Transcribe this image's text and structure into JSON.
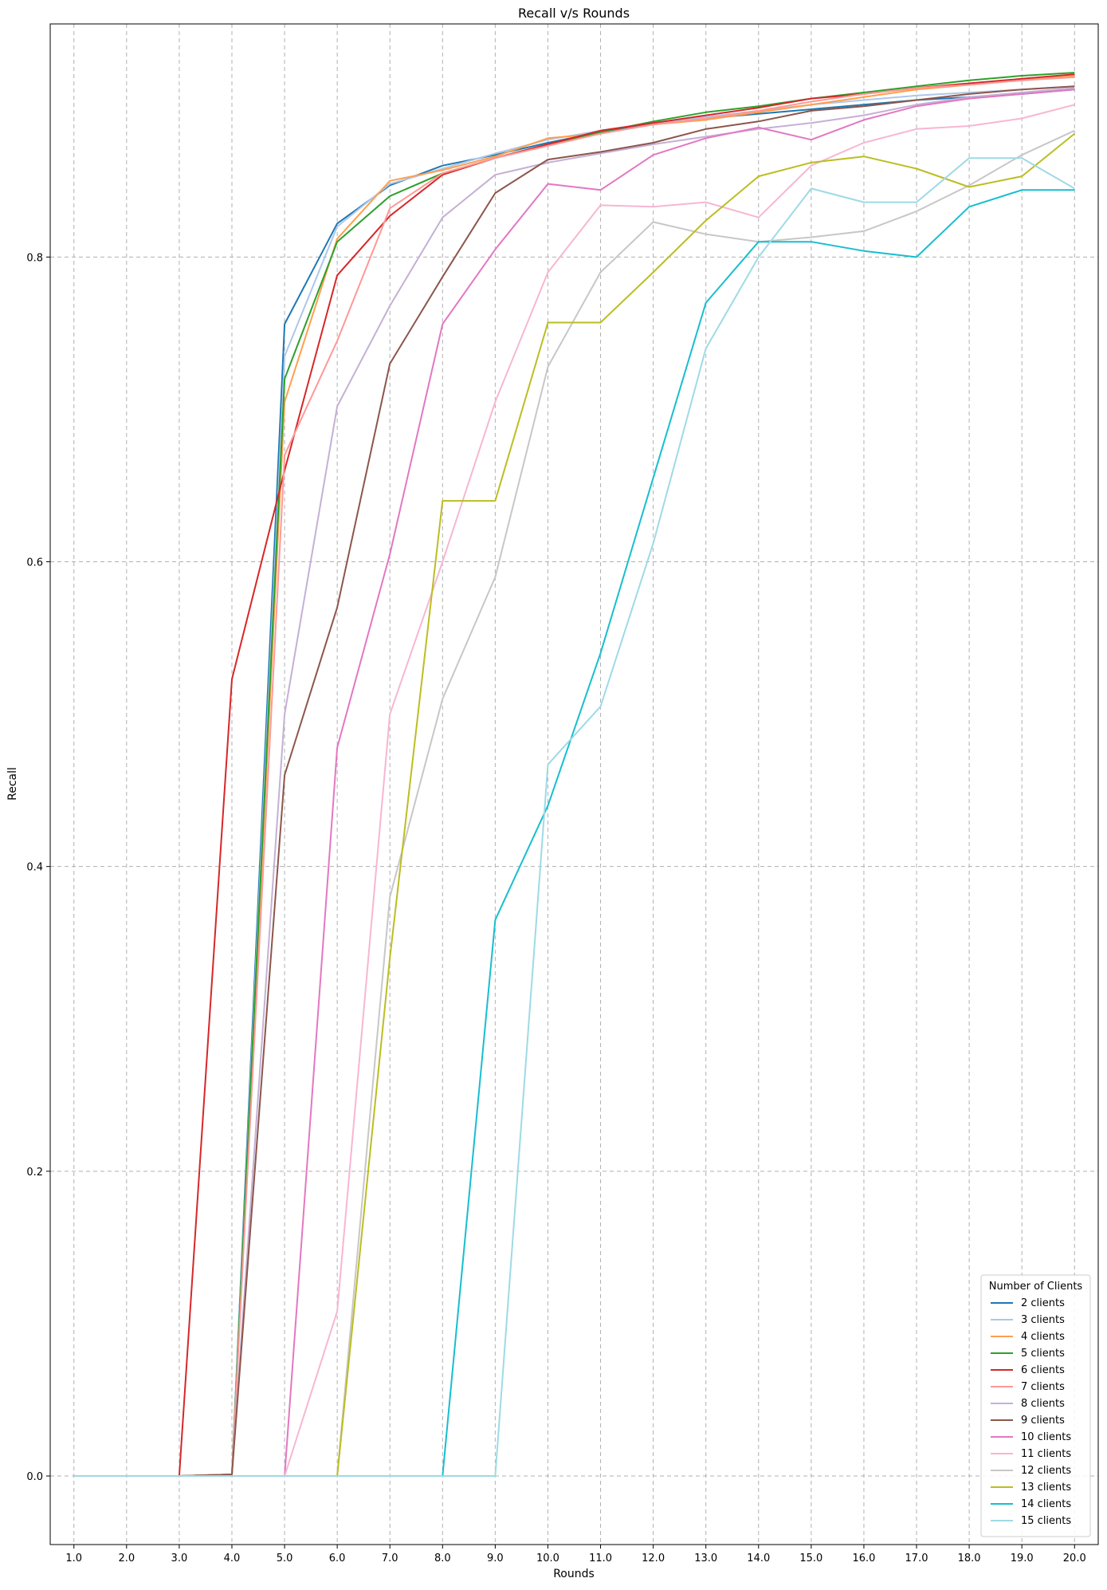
{
  "chart_data": {
    "type": "line",
    "title": "Recall v/s Rounds",
    "xlabel": "Rounds",
    "ylabel": "Recall",
    "x": [
      1,
      2,
      3,
      4,
      5,
      6,
      7,
      8,
      9,
      10,
      11,
      12,
      13,
      14,
      15,
      16,
      17,
      18,
      19,
      20
    ],
    "x_tick_labels": [
      "1.0",
      "2.0",
      "3.0",
      "4.0",
      "5.0",
      "6.0",
      "7.0",
      "8.0",
      "9.0",
      "10.0",
      "11.0",
      "12.0",
      "13.0",
      "14.0",
      "15.0",
      "16.0",
      "17.0",
      "18.0",
      "19.0",
      "20.0"
    ],
    "y_ticks": [
      0.0,
      0.2,
      0.4,
      0.6,
      0.8
    ],
    "y_tick_labels": [
      "0.0",
      "0.2",
      "0.4",
      "0.6",
      "0.8"
    ],
    "xlim": [
      0.55,
      20.45
    ],
    "ylim": [
      -0.045,
      0.953
    ],
    "grid": true,
    "legend": {
      "title": "Number of Clients",
      "placement": "lower-right"
    },
    "series": [
      {
        "name": "2 clients",
        "color": "#1f77b4",
        "values": [
          0,
          0,
          0,
          0.001,
          0.756,
          0.822,
          0.847,
          0.86,
          0.867,
          0.875,
          0.882,
          0.887,
          0.891,
          0.894,
          0.897,
          0.9,
          0.903,
          0.905,
          0.907,
          0.91
        ]
      },
      {
        "name": "3 clients",
        "color": "#aec7e8",
        "values": [
          0,
          0,
          0,
          0.001,
          0.735,
          0.82,
          0.848,
          0.858,
          0.868,
          0.877,
          0.883,
          0.888,
          0.892,
          0.896,
          0.9,
          0.903,
          0.906,
          0.908,
          0.91,
          0.912
        ]
      },
      {
        "name": "4 clients",
        "color": "#ff9f4e",
        "values": [
          0,
          0,
          0,
          0.001,
          0.705,
          0.812,
          0.85,
          0.857,
          0.866,
          0.878,
          0.881,
          0.887,
          0.89,
          0.895,
          0.9,
          0.905,
          0.91,
          0.913,
          0.916,
          0.919
        ]
      },
      {
        "name": "5 clients",
        "color": "#2ca02c",
        "values": [
          0,
          0,
          0,
          0.001,
          0.72,
          0.81,
          0.84,
          0.855,
          0.865,
          0.874,
          0.882,
          0.889,
          0.895,
          0.899,
          0.904,
          0.908,
          0.912,
          0.916,
          0.919,
          0.921
        ]
      },
      {
        "name": "6 clients",
        "color": "#d62728",
        "values": [
          0,
          0,
          0,
          0.523,
          0.66,
          0.788,
          0.827,
          0.854,
          0.865,
          0.874,
          0.883,
          0.888,
          0.893,
          0.898,
          0.904,
          0.907,
          0.911,
          0.914,
          0.917,
          0.92
        ]
      },
      {
        "name": "7 clients",
        "color": "#ff9896",
        "values": [
          0,
          0,
          0,
          0.001,
          0.67,
          0.745,
          0.832,
          0.855,
          0.865,
          0.873,
          0.881,
          0.887,
          0.891,
          0.896,
          0.902,
          0.907,
          0.911,
          0.913,
          0.916,
          0.918
        ]
      },
      {
        "name": "8 clients",
        "color": "#c5b0d5",
        "values": [
          0,
          0,
          0,
          0.001,
          0.5,
          0.702,
          0.768,
          0.826,
          0.854,
          0.862,
          0.868,
          0.874,
          0.879,
          0.884,
          0.888,
          0.893,
          0.9,
          0.905,
          0.908,
          0.911
        ]
      },
      {
        "name": "9 clients",
        "color": "#8c564b",
        "values": [
          0,
          0,
          0,
          0.001,
          0.46,
          0.57,
          0.73,
          0.787,
          0.842,
          0.864,
          0.869,
          0.875,
          0.884,
          0.889,
          0.896,
          0.899,
          0.903,
          0.907,
          0.91,
          0.912
        ]
      },
      {
        "name": "10 clients",
        "color": "#e377c2",
        "values": [
          0,
          0,
          0,
          0,
          0,
          0.478,
          0.605,
          0.756,
          0.805,
          0.848,
          0.844,
          0.867,
          0.878,
          0.885,
          0.877,
          0.89,
          0.899,
          0.904,
          0.907,
          0.91
        ]
      },
      {
        "name": "11 clients",
        "color": "#f7b6d2",
        "values": [
          0,
          0,
          0,
          0,
          0,
          0.108,
          0.5,
          0.6,
          0.705,
          0.79,
          0.834,
          0.833,
          0.836,
          0.826,
          0.86,
          0.875,
          0.884,
          0.886,
          0.891,
          0.9
        ]
      },
      {
        "name": "12 clients",
        "color": "#c7c7c7",
        "values": [
          0,
          0,
          0,
          0,
          0,
          0,
          0.38,
          0.51,
          0.59,
          0.728,
          0.79,
          0.823,
          0.815,
          0.81,
          0.813,
          0.817,
          0.83,
          0.847,
          0.867,
          0.883
        ]
      },
      {
        "name": "13 clients",
        "color": "#bcbd22",
        "values": [
          0,
          0,
          0,
          0,
          0,
          0,
          0.34,
          0.64,
          0.64,
          0.757,
          0.757,
          0.79,
          0.824,
          0.853,
          0.862,
          0.866,
          0.858,
          0.846,
          0.853,
          0.881
        ]
      },
      {
        "name": "14 clients",
        "color": "#17becf",
        "values": [
          0,
          0,
          0,
          0,
          0,
          0,
          0,
          0,
          0.365,
          0.44,
          0.54,
          0.655,
          0.77,
          0.81,
          0.81,
          0.804,
          0.8,
          0.833,
          0.844,
          0.844
        ]
      },
      {
        "name": "15 clients",
        "color": "#9edae5",
        "values": [
          0,
          0,
          0,
          0,
          0,
          0,
          0,
          0,
          0,
          0.467,
          0.505,
          0.612,
          0.74,
          0.8,
          0.845,
          0.836,
          0.836,
          0.865,
          0.865,
          0.845
        ]
      }
    ]
  }
}
